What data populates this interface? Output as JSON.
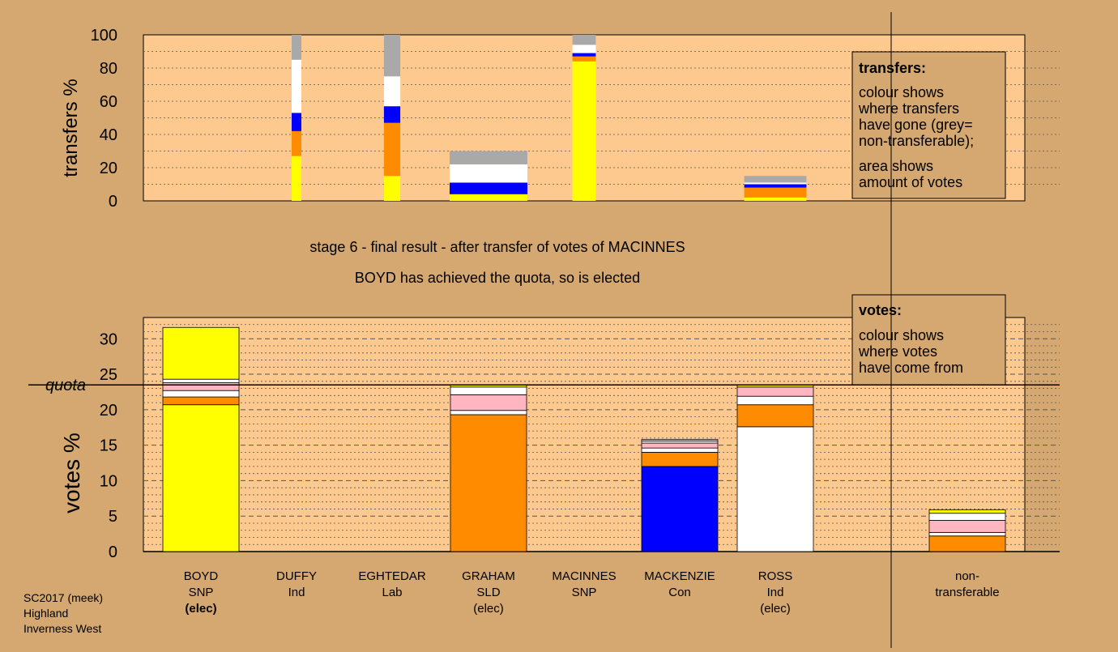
{
  "colors": {
    "background": "#d4a870",
    "plot_bg": "#fdc98e",
    "SNP": "#ffff00",
    "SLD": "#ff8c00",
    "Con": "#0000ff",
    "Lab": "#ff0000",
    "Ind_Ross": "#ffffff",
    "Ind_Duffy": "#ffb6c1",
    "nontransferable": "#a9a9a9"
  },
  "stage_title": "stage 6 - final result - after transfer of votes of MACINNES",
  "stage_note": "BOYD has achieved the quota, so is elected",
  "footer": {
    "line1": "SC2017 (meek)",
    "line2": "Highland",
    "line3": "Inverness West"
  },
  "legend_transfers": {
    "title": "transfers:",
    "lines": [
      "colour shows",
      "where transfers",
      "have gone (grey=",
      "non-transferable);",
      "area shows",
      "amount of votes"
    ]
  },
  "legend_votes": {
    "title": "votes:",
    "lines": [
      "colour shows",
      "where votes",
      "have come from"
    ]
  },
  "candidates": [
    {
      "name": "BOYD",
      "party": "SNP",
      "status": "(elec)"
    },
    {
      "name": "DUFFY",
      "party": "Ind",
      "status": ""
    },
    {
      "name": "EGHTEDAR",
      "party": "Lab",
      "status": ""
    },
    {
      "name": "GRAHAM",
      "party": "SLD",
      "status": "(elec)"
    },
    {
      "name": "MACINNES",
      "party": "SNP",
      "status": ""
    },
    {
      "name": "MACKENZIE",
      "party": "Con",
      "status": ""
    },
    {
      "name": "ROSS",
      "party": "Ind",
      "status": "(elec)"
    },
    {
      "name": "non-",
      "party": "transferable",
      "status": ""
    }
  ],
  "chart_data": [
    {
      "type": "bar",
      "ylabel": "transfers %",
      "ylim": [
        0,
        100
      ],
      "yticks": [
        0,
        20,
        40,
        60,
        80,
        100
      ],
      "bars": [
        {
          "candidate": "DUFFY",
          "width_frac": 0.125,
          "segments": [
            {
              "color": "#ffff00",
              "value": 27
            },
            {
              "color": "#ff8c00",
              "value": 15
            },
            {
              "color": "#0000ff",
              "value": 11
            },
            {
              "color": "#ffffff",
              "value": 32
            },
            {
              "color": "#a9a9a9",
              "value": 15
            }
          ]
        },
        {
          "candidate": "EGHTEDAR",
          "width_frac": 0.21,
          "segments": [
            {
              "color": "#ffff00",
              "value": 15
            },
            {
              "color": "#ff8c00",
              "value": 32
            },
            {
              "color": "#0000ff",
              "value": 10
            },
            {
              "color": "#ffffff",
              "value": 18
            },
            {
              "color": "#a9a9a9",
              "value": 25
            }
          ]
        },
        {
          "candidate": "GRAHAM",
          "width_frac": 1.0,
          "segments": [
            {
              "color": "#ffff00",
              "value": 4
            },
            {
              "color": "#0000ff",
              "value": 7
            },
            {
              "color": "#ffffff",
              "value": 11
            },
            {
              "color": "#a9a9a9",
              "value": 8
            }
          ]
        },
        {
          "candidate": "MACINNES",
          "width_frac": 0.3,
          "segments": [
            {
              "color": "#ffff00",
              "value": 84
            },
            {
              "color": "#ff8c00",
              "value": 3
            },
            {
              "color": "#0000ff",
              "value": 2
            },
            {
              "color": "#ffffff",
              "value": 5
            },
            {
              "color": "#a9a9a9",
              "value": 6
            }
          ]
        },
        {
          "candidate": "ROSS",
          "width_frac": 0.8,
          "segments": [
            {
              "color": "#ffff00",
              "value": 2
            },
            {
              "color": "#ff8c00",
              "value": 6
            },
            {
              "color": "#0000ff",
              "value": 2
            },
            {
              "color": "#ffffff",
              "value": 1
            },
            {
              "color": "#a9a9a9",
              "value": 4
            }
          ]
        }
      ]
    },
    {
      "type": "bar",
      "ylabel": "votes %",
      "ylim": [
        0,
        33
      ],
      "yticks": [
        0,
        5,
        10,
        15,
        20,
        25,
        30
      ],
      "quota": 23.5,
      "quota_label": "quota",
      "bars": [
        {
          "candidate": "BOYD",
          "segments": [
            {
              "color": "#ffff00",
              "value": 20.7
            },
            {
              "color": "#ff8c00",
              "value": 1.1
            },
            {
              "color": "#ffffff",
              "value": 0.9
            },
            {
              "color": "#ffb6c1",
              "value": 1.1
            },
            {
              "color": "#ffffff",
              "value": 0.5
            },
            {
              "color": "#ffff00",
              "value": 7.3
            }
          ]
        },
        {
          "candidate": "DUFFY",
          "segments": []
        },
        {
          "candidate": "EGHTEDAR",
          "segments": []
        },
        {
          "candidate": "GRAHAM",
          "segments": [
            {
              "color": "#ff8c00",
              "value": 19.3
            },
            {
              "color": "#ffffff",
              "value": 0.6
            },
            {
              "color": "#ffb6c1",
              "value": 2.2
            },
            {
              "color": "#ffffff",
              "value": 1.1
            },
            {
              "color": "#ffff00",
              "value": 0.3
            }
          ]
        },
        {
          "candidate": "MACINNES",
          "segments": []
        },
        {
          "candidate": "MACKENZIE",
          "segments": [
            {
              "color": "#0000ff",
              "value": 12.0
            },
            {
              "color": "#ff8c00",
              "value": 2.0
            },
            {
              "color": "#ffffff",
              "value": 0.6
            },
            {
              "color": "#ffb6c1",
              "value": 0.7
            },
            {
              "color": "#ffffff",
              "value": 0.3
            },
            {
              "color": "#ffff00",
              "value": 0.2
            }
          ]
        },
        {
          "candidate": "ROSS",
          "segments": [
            {
              "color": "#ffffff",
              "value": 17.6
            },
            {
              "color": "#ff8c00",
              "value": 3.1
            },
            {
              "color": "#ffffff",
              "value": 1.2
            },
            {
              "color": "#ffb6c1",
              "value": 1.3
            },
            {
              "color": "#ffff00",
              "value": 0.3
            }
          ]
        },
        {
          "candidate": "non-transferable",
          "segments": [
            {
              "color": "#ff8c00",
              "value": 2.2
            },
            {
              "color": "#ffffff",
              "value": 0.5
            },
            {
              "color": "#ffb6c1",
              "value": 1.7
            },
            {
              "color": "#ffffff",
              "value": 1.0
            },
            {
              "color": "#ffff00",
              "value": 0.5
            }
          ]
        }
      ]
    }
  ]
}
